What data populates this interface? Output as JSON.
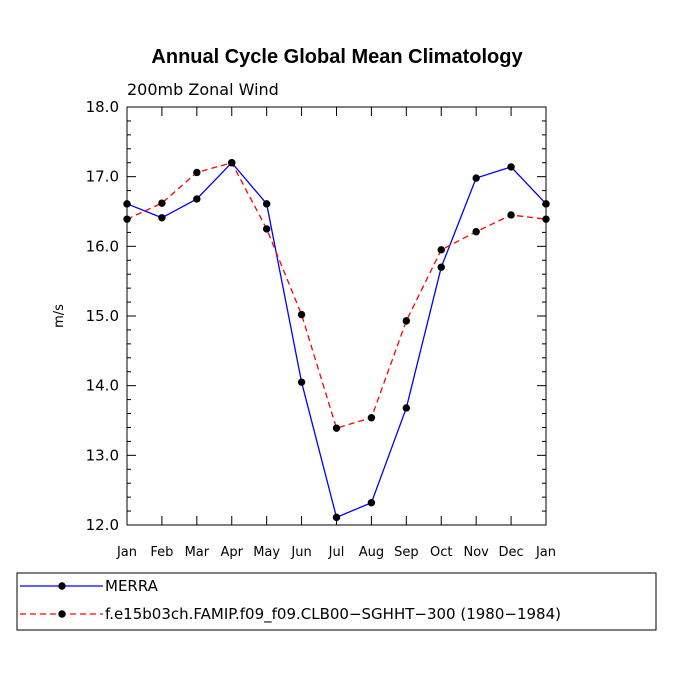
{
  "chart_data": {
    "type": "line",
    "title": "Annual Cycle Global Mean Climatology",
    "subtitle": "200mb Zonal Wind",
    "xlabel": "",
    "ylabel": "m/s",
    "categories": [
      "Jan",
      "Feb",
      "Mar",
      "Apr",
      "May",
      "Jun",
      "Jul",
      "Aug",
      "Sep",
      "Oct",
      "Nov",
      "Dec",
      "Jan"
    ],
    "ylim": [
      12.0,
      18.0
    ],
    "yticks": [
      "12.0",
      "13.0",
      "14.0",
      "15.0",
      "16.0",
      "17.0",
      "18.0"
    ],
    "series": [
      {
        "name": "MERRA",
        "color": "#0000ff",
        "dash": "solid",
        "values": [
          16.61,
          16.41,
          16.68,
          17.2,
          16.61,
          14.05,
          12.11,
          12.32,
          13.68,
          15.7,
          16.98,
          17.14,
          16.61
        ]
      },
      {
        "name": "f.e15b03ch.FAMIP.f09_f09.CLB00−SGHHT−300 (1980−1984)",
        "color": "#ff0000",
        "dash": "dashed",
        "values": [
          16.39,
          16.62,
          17.06,
          17.2,
          16.25,
          15.02,
          13.39,
          13.54,
          14.93,
          15.95,
          16.21,
          16.45,
          16.39
        ]
      }
    ],
    "legend_position": "bottom"
  }
}
